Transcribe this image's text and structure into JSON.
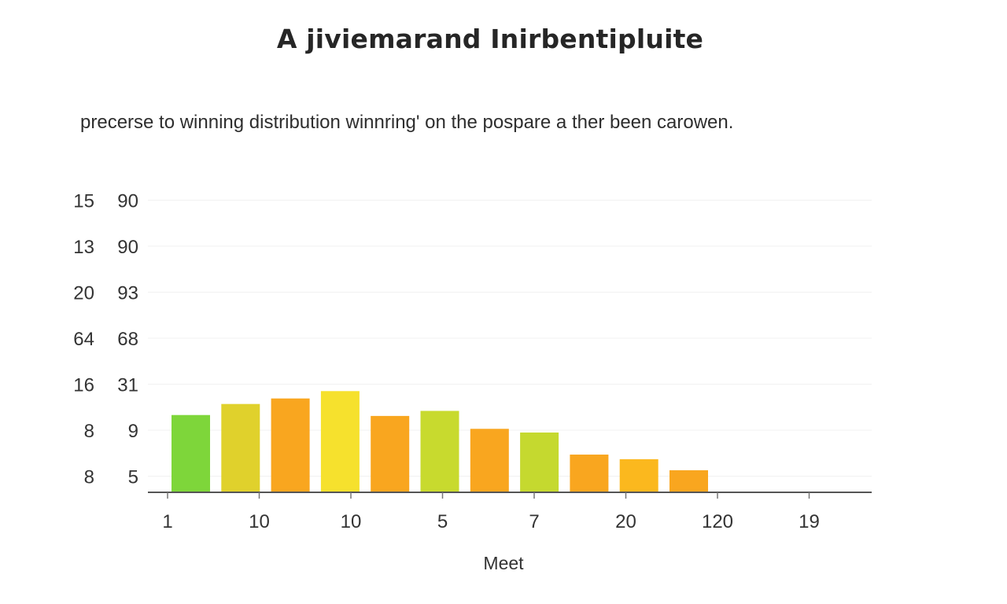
{
  "chart_data": {
    "type": "bar",
    "title": "A jiviemarand Inirbentipluite",
    "subtitle": "precerse to winning distribution winnring' on the pospare a ther been carowen.",
    "xlabel": "Meet",
    "ylabel": "",
    "y_tick_labels": [
      [
        "8",
        "5"
      ],
      [
        "8",
        "9"
      ],
      [
        "16",
        "31"
      ],
      [
        "64",
        "68"
      ],
      [
        "20",
        "93"
      ],
      [
        "13",
        "90"
      ],
      [
        "15",
        "90"
      ]
    ],
    "x_tick_labels": [
      "1",
      "10",
      "10",
      "5",
      "7",
      "20",
      "120",
      "19"
    ],
    "values": [
      1.68,
      1.92,
      2.04,
      2.2,
      1.66,
      1.77,
      1.38,
      1.3,
      0.82,
      0.72,
      0.48
    ],
    "colors": [
      "#7ed63a",
      "#e0d12c",
      "#f9a61f",
      "#f6e12d",
      "#f9a61f",
      "#c8da2e",
      "#f9a61f",
      "#c5d92f",
      "#f9a61f",
      "#fbb81e",
      "#f9a61f"
    ],
    "ylim": [
      0,
      6.5
    ],
    "grid": true,
    "legend": "none"
  }
}
